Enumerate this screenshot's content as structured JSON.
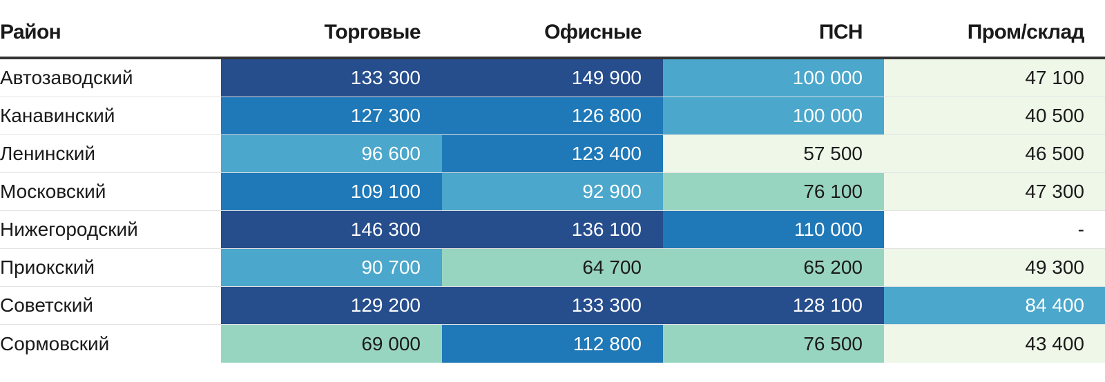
{
  "chart_data": {
    "type": "heatmap",
    "columns": [
      "Район",
      "Торговые",
      "Офисные",
      "ПСН",
      "Пром/склад"
    ],
    "rows": [
      {
        "district": "Автозаводский",
        "values": [
          "133 300",
          "149 900",
          "100 000",
          "47 100"
        ]
      },
      {
        "district": "Канавинский",
        "values": [
          "127 300",
          "126 800",
          "100 000",
          "40 500"
        ]
      },
      {
        "district": "Ленинский",
        "values": [
          "96 600",
          "123 400",
          "57 500",
          "46 500"
        ]
      },
      {
        "district": "Московский",
        "values": [
          "109 100",
          "92 900",
          "76 100",
          "47 300"
        ]
      },
      {
        "district": "Нижегородский",
        "values": [
          "146 300",
          "136 100",
          "110 000",
          "-"
        ]
      },
      {
        "district": "Приокский",
        "values": [
          "90 700",
          "64 700",
          "65 200",
          "49 300"
        ]
      },
      {
        "district": "Советский",
        "values": [
          "129 200",
          "133 300",
          "128 100",
          "84 400"
        ]
      },
      {
        "district": "Сормовский",
        "values": [
          "69 000",
          "112 800",
          "76 500",
          "43 400"
        ]
      }
    ],
    "color_scale": [
      {
        "min": 0,
        "color": "#eef7e8",
        "text": "#1a1a1a"
      },
      {
        "min": 60000,
        "color": "#98d5c0",
        "text": "#1a1a1a"
      },
      {
        "min": 80000,
        "color": "#4ba7cb",
        "text": "#ffffff"
      },
      {
        "min": 100001,
        "color": "#1f78b7",
        "text": "#ffffff"
      },
      {
        "min": 128000,
        "color": "#264d8c",
        "text": "#ffffff"
      }
    ],
    "empty_color": "#ffffff",
    "grid": true
  }
}
